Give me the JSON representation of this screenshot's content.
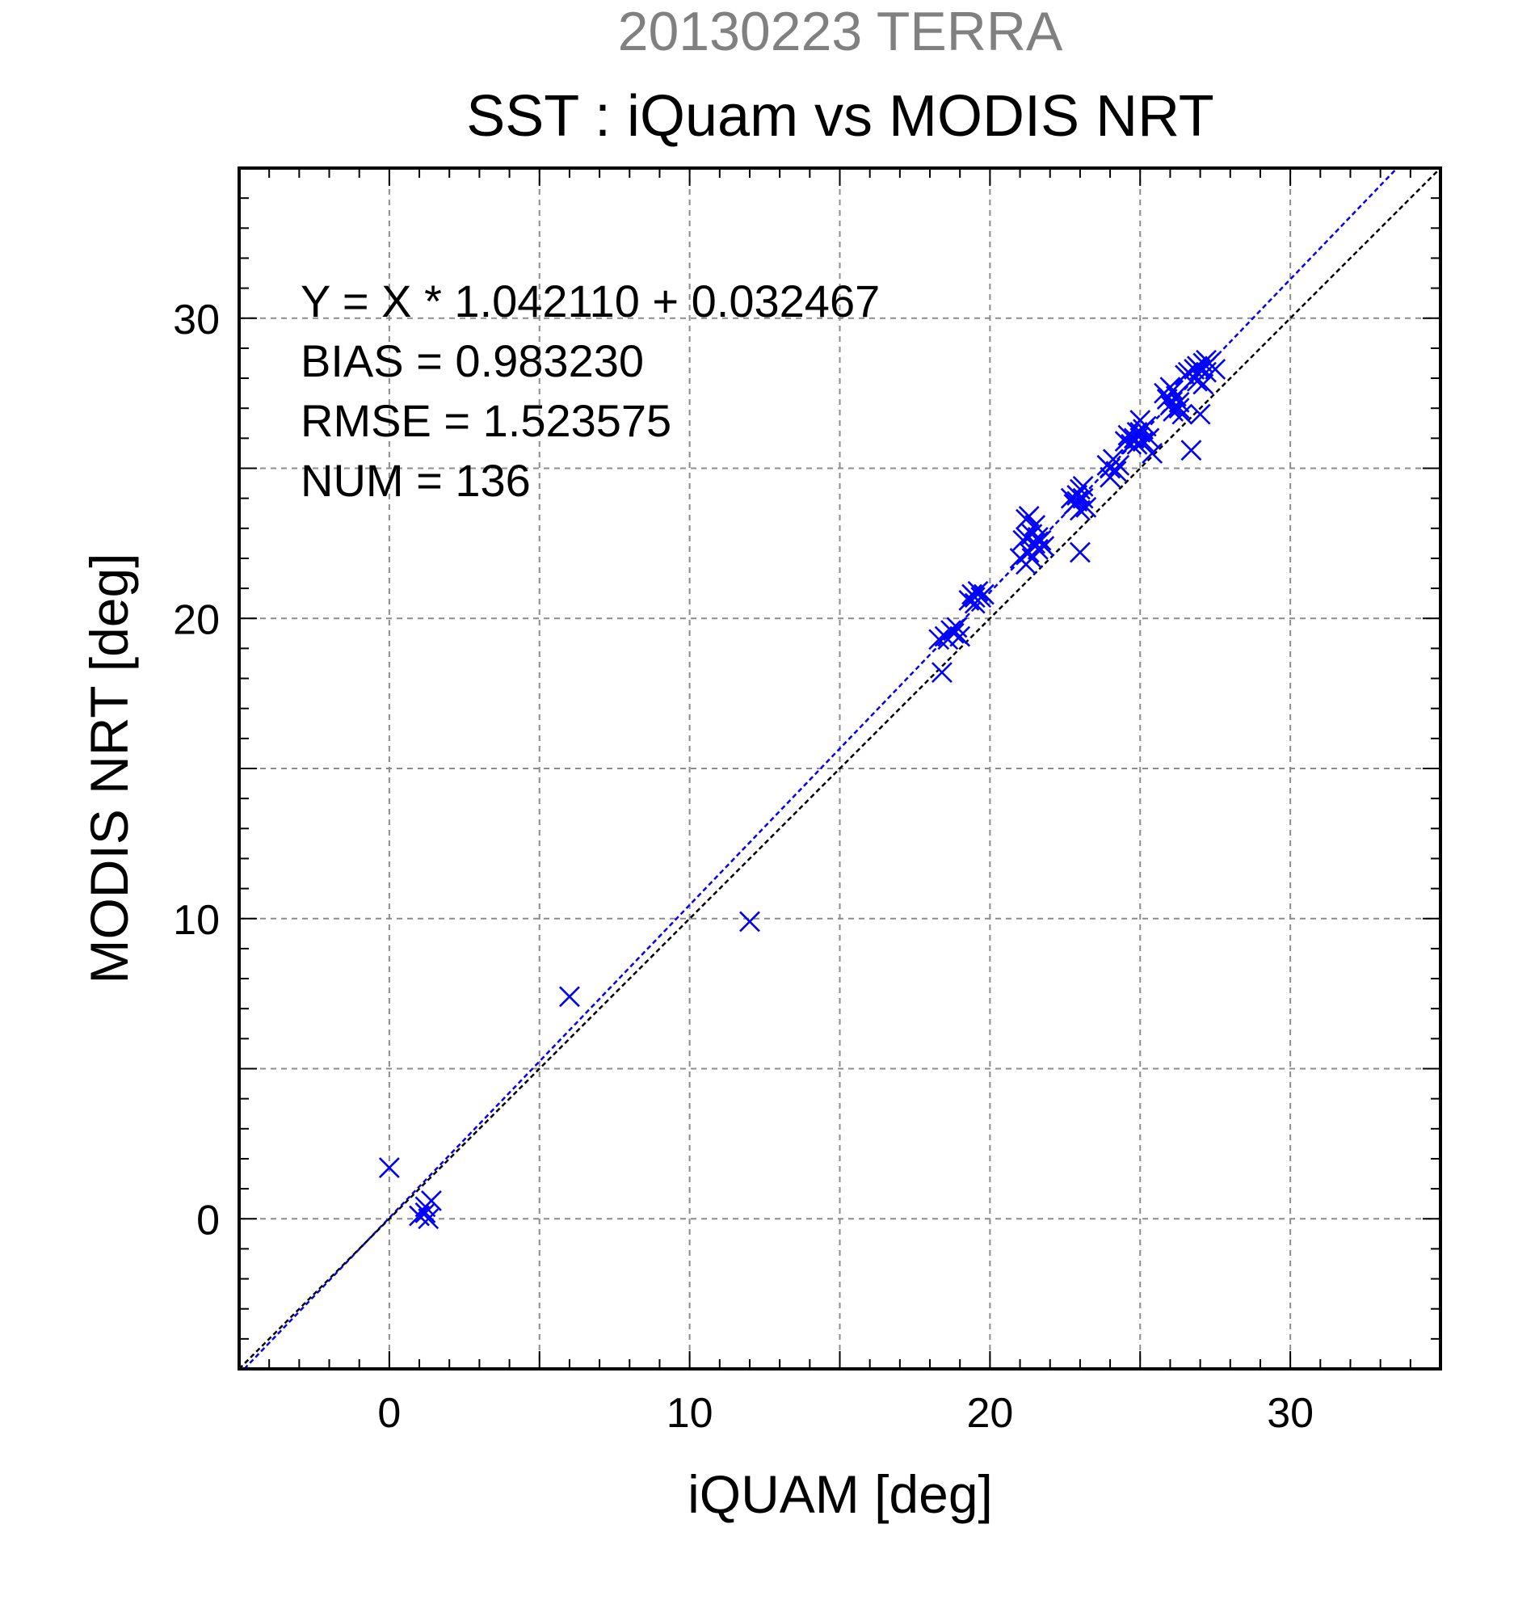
{
  "chart_data": {
    "type": "scatter",
    "title_top": "20130223 TERRA",
    "title": "SST : iQuam vs MODIS NRT",
    "xlabel": "iQUAM [deg]",
    "ylabel": "MODIS NRT [deg]",
    "xlim": [
      -5,
      35
    ],
    "ylim": [
      -5,
      35
    ],
    "x_ticks": [
      0,
      10,
      20,
      30
    ],
    "y_ticks": [
      0,
      10,
      20,
      30
    ],
    "x_tick_labels": [
      "0",
      "10",
      "20",
      "30"
    ],
    "y_tick_labels": [
      "0",
      "10",
      "20",
      "30"
    ],
    "grid": true,
    "grid_step": 5,
    "minor_tick_step": 1,
    "annotations": [
      "Y = X * 1.042110 + 0.032467",
      "BIAS = 0.983230",
      "RMSE = 1.523575",
      "NUM = 136"
    ],
    "lines": [
      {
        "kind": "regression",
        "slope": 1.04211,
        "intercept": 0.032467,
        "color": "#0000ff"
      },
      {
        "kind": "one-to-one",
        "slope": 1,
        "intercept": 0,
        "color": "#000000"
      }
    ],
    "marker": "x",
    "marker_color": "#0000ff",
    "points": [
      [
        0.0,
        1.7
      ],
      [
        1.0,
        0.1
      ],
      [
        1.2,
        0.4
      ],
      [
        1.3,
        0.0
      ],
      [
        1.4,
        0.6
      ],
      [
        1.2,
        0.2
      ],
      [
        6.0,
        7.4
      ],
      [
        12.0,
        9.9
      ],
      [
        18.3,
        19.3
      ],
      [
        18.4,
        18.2
      ],
      [
        18.5,
        19.4
      ],
      [
        18.6,
        19.3
      ],
      [
        18.7,
        19.6
      ],
      [
        18.8,
        19.5
      ],
      [
        19.0,
        19.4
      ],
      [
        18.9,
        19.7
      ],
      [
        19.3,
        20.6
      ],
      [
        19.4,
        20.8
      ],
      [
        19.5,
        20.5
      ],
      [
        19.6,
        20.9
      ],
      [
        19.7,
        20.7
      ],
      [
        19.8,
        20.8
      ],
      [
        19.5,
        20.7
      ],
      [
        21.0,
        22.0
      ],
      [
        21.1,
        22.6
      ],
      [
        21.2,
        23.3
      ],
      [
        21.2,
        21.8
      ],
      [
        21.3,
        23.4
      ],
      [
        21.3,
        22.2
      ],
      [
        21.4,
        22.8
      ],
      [
        21.5,
        23.1
      ],
      [
        21.5,
        22.5
      ],
      [
        21.6,
        22.7
      ],
      [
        21.6,
        22.3
      ],
      [
        21.7,
        22.6
      ],
      [
        21.8,
        22.4
      ],
      [
        21.4,
        22.0
      ],
      [
        21.2,
        22.7
      ],
      [
        22.7,
        24.0
      ],
      [
        22.8,
        23.8
      ],
      [
        22.9,
        24.1
      ],
      [
        23.0,
        23.6
      ],
      [
        23.0,
        24.3
      ],
      [
        23.0,
        22.2
      ],
      [
        23.1,
        24.0
      ],
      [
        23.2,
        23.7
      ],
      [
        23.1,
        24.4
      ],
      [
        22.9,
        23.9
      ],
      [
        23.9,
        25.1
      ],
      [
        24.0,
        24.7
      ],
      [
        24.1,
        25.3
      ],
      [
        24.2,
        24.9
      ],
      [
        24.3,
        25.1
      ],
      [
        24.0,
        25.0
      ],
      [
        24.5,
        25.9
      ],
      [
        24.6,
        26.1
      ],
      [
        24.7,
        25.8
      ],
      [
        24.8,
        26.0
      ],
      [
        24.9,
        25.8
      ],
      [
        25.0,
        26.6
      ],
      [
        25.0,
        26.2
      ],
      [
        25.1,
        25.9
      ],
      [
        25.2,
        26.4
      ],
      [
        25.3,
        26.0
      ],
      [
        25.4,
        25.5
      ],
      [
        25.1,
        26.3
      ],
      [
        24.9,
        26.2
      ],
      [
        25.8,
        27.5
      ],
      [
        25.9,
        27.3
      ],
      [
        26.0,
        27.7
      ],
      [
        26.0,
        27.1
      ],
      [
        26.1,
        26.9
      ],
      [
        26.2,
        27.4
      ],
      [
        26.3,
        27.0
      ],
      [
        26.3,
        27.2
      ],
      [
        26.4,
        26.8
      ],
      [
        26.1,
        27.6
      ],
      [
        26.5,
        28.1
      ],
      [
        26.6,
        28.2
      ],
      [
        26.7,
        25.6
      ],
      [
        26.8,
        28.0
      ],
      [
        26.9,
        28.4
      ],
      [
        26.9,
        27.9
      ],
      [
        27.0,
        28.3
      ],
      [
        27.0,
        26.8
      ],
      [
        27.1,
        28.5
      ],
      [
        27.2,
        28.6
      ],
      [
        27.2,
        28.2
      ],
      [
        27.3,
        28.5
      ],
      [
        27.5,
        28.3
      ],
      [
        27.1,
        27.8
      ],
      [
        26.8,
        28.3
      ]
    ]
  }
}
